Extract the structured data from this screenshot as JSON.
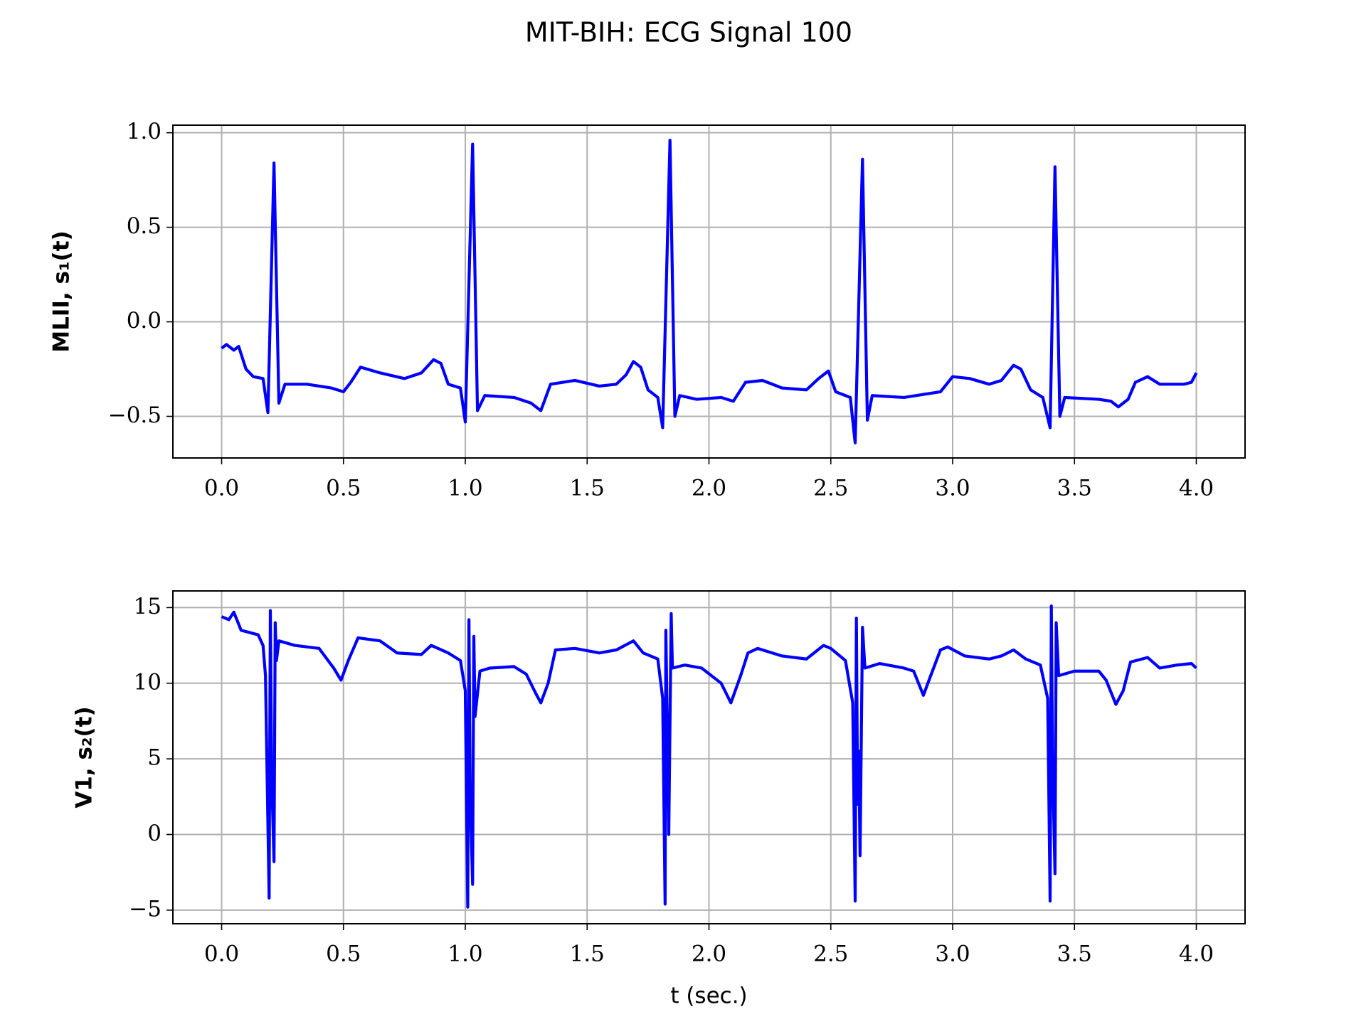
{
  "title": "MIT-BIH: ECG Signal 100",
  "chart_data": [
    {
      "type": "line",
      "ylabel": "MLII, s₁(t)",
      "color": "#0000ff",
      "grid": true,
      "xlim": [
        -0.2,
        4.2
      ],
      "ylim": [
        -0.72,
        1.04
      ],
      "xticks": [
        {
          "value": 0,
          "label": "0.0"
        },
        0.5,
        {
          "value": 1,
          "label": "1.0"
        },
        1.5,
        {
          "value": 2,
          "label": "2.0"
        },
        2.5,
        {
          "value": 3,
          "label": "3.0"
        },
        3.5,
        {
          "value": 4,
          "label": "4.0"
        }
      ],
      "yticks": [
        {
          "value": -0.5,
          "label": "−0.5"
        },
        {
          "value": 0,
          "label": "0.0"
        },
        0.5,
        {
          "value": 1,
          "label": "1.0"
        }
      ],
      "x": [
        0,
        0.02,
        0.05,
        0.07,
        0.1,
        0.13,
        0.17,
        0.19,
        0.215,
        0.235,
        0.26,
        0.35,
        0.45,
        0.5,
        0.53,
        0.57,
        0.65,
        0.75,
        0.82,
        0.87,
        0.9,
        0.93,
        0.98,
        1.0,
        1.03,
        1.05,
        1.08,
        1.2,
        1.27,
        1.31,
        1.35,
        1.45,
        1.55,
        1.62,
        1.66,
        1.69,
        1.72,
        1.75,
        1.79,
        1.81,
        1.84,
        1.86,
        1.88,
        1.95,
        2.05,
        2.1,
        2.15,
        2.22,
        2.3,
        2.4,
        2.45,
        2.49,
        2.52,
        2.58,
        2.6,
        2.63,
        2.65,
        2.67,
        2.8,
        2.9,
        2.95,
        3.0,
        3.07,
        3.15,
        3.2,
        3.25,
        3.28,
        3.32,
        3.37,
        3.4,
        3.42,
        3.44,
        3.46,
        3.6,
        3.65,
        3.68,
        3.72,
        3.75,
        3.8,
        3.85,
        3.95,
        3.98,
        4.0
      ],
      "values": [
        -0.14,
        -0.12,
        -0.15,
        -0.13,
        -0.25,
        -0.29,
        -0.3,
        -0.48,
        0.84,
        -0.43,
        -0.33,
        -0.33,
        -0.35,
        -0.37,
        -0.32,
        -0.24,
        -0.27,
        -0.3,
        -0.27,
        -0.2,
        -0.22,
        -0.33,
        -0.35,
        -0.53,
        0.94,
        -0.47,
        -0.39,
        -0.4,
        -0.43,
        -0.47,
        -0.33,
        -0.31,
        -0.34,
        -0.33,
        -0.28,
        -0.21,
        -0.24,
        -0.36,
        -0.4,
        -0.56,
        0.96,
        -0.5,
        -0.39,
        -0.41,
        -0.4,
        -0.42,
        -0.32,
        -0.31,
        -0.35,
        -0.36,
        -0.3,
        -0.26,
        -0.37,
        -0.4,
        -0.64,
        0.86,
        -0.52,
        -0.39,
        -0.4,
        -0.38,
        -0.37,
        -0.29,
        -0.3,
        -0.33,
        -0.31,
        -0.23,
        -0.25,
        -0.36,
        -0.4,
        -0.56,
        0.82,
        -0.5,
        -0.4,
        -0.41,
        -0.42,
        -0.45,
        -0.41,
        -0.32,
        -0.29,
        -0.33,
        -0.33,
        -0.32,
        -0.27
      ]
    },
    {
      "type": "line",
      "ylabel": "V1, s₂(t)",
      "xlabel": "t (sec.)",
      "color": "#0000ff",
      "grid": true,
      "xlim": [
        -0.2,
        4.2
      ],
      "ylim": [
        -5.9,
        16.1
      ],
      "xticks": [
        {
          "value": 0,
          "label": "0.0"
        },
        0.5,
        {
          "value": 1,
          "label": "1.0"
        },
        1.5,
        {
          "value": 2,
          "label": "2.0"
        },
        2.5,
        {
          "value": 3,
          "label": "3.0"
        },
        3.5,
        {
          "value": 4,
          "label": "4.0"
        }
      ],
      "yticks": [
        {
          "value": -5,
          "label": "−5"
        },
        0,
        5,
        10,
        15
      ],
      "x": [
        0,
        0.03,
        0.05,
        0.08,
        0.15,
        0.17,
        0.18,
        0.195,
        0.2,
        0.205,
        0.215,
        0.22,
        0.225,
        0.235,
        0.3,
        0.4,
        0.46,
        0.49,
        0.52,
        0.56,
        0.65,
        0.72,
        0.82,
        0.86,
        0.93,
        0.98,
        1.0,
        1.01,
        1.015,
        1.02,
        1.03,
        1.035,
        1.04,
        1.06,
        1.1,
        1.2,
        1.25,
        1.29,
        1.31,
        1.34,
        1.37,
        1.45,
        1.55,
        1.62,
        1.69,
        1.73,
        1.79,
        1.81,
        1.82,
        1.823,
        1.83,
        1.835,
        1.845,
        1.85,
        1.9,
        1.97,
        2.05,
        2.09,
        2.13,
        2.16,
        2.2,
        2.3,
        2.4,
        2.47,
        2.5,
        2.56,
        2.59,
        2.6,
        2.605,
        2.61,
        2.615,
        2.62,
        2.63,
        2.64,
        2.7,
        2.8,
        2.84,
        2.88,
        2.91,
        2.95,
        2.98,
        3.05,
        3.15,
        3.2,
        3.25,
        3.3,
        3.36,
        3.39,
        3.4,
        3.405,
        3.41,
        3.42,
        3.425,
        3.435,
        3.5,
        3.6,
        3.63,
        3.67,
        3.7,
        3.73,
        3.8,
        3.85,
        3.92,
        3.98,
        4.0
      ],
      "values": [
        14.4,
        14.2,
        14.7,
        13.5,
        13.2,
        12.5,
        10.5,
        -4.2,
        14.8,
        4.2,
        -1.8,
        14,
        11.5,
        12.8,
        12.5,
        12.3,
        11,
        10.2,
        11.5,
        13,
        12.8,
        12,
        11.9,
        12.5,
        12,
        11.5,
        9.5,
        -4.8,
        14.2,
        2.8,
        -3.3,
        13.1,
        7.8,
        10.8,
        11,
        11.1,
        10.6,
        9.3,
        8.7,
        10,
        12.2,
        12.3,
        12,
        12.2,
        12.8,
        12,
        11.6,
        9,
        -4.6,
        13.5,
        6,
        0,
        14.6,
        11,
        11.2,
        11,
        10,
        8.7,
        10.5,
        12,
        12.3,
        11.8,
        11.6,
        12.5,
        12.3,
        11.5,
        8.7,
        -4.4,
        14.3,
        2,
        5.5,
        -1.4,
        13.7,
        11,
        11.3,
        11,
        10.8,
        9.2,
        10.5,
        12.2,
        12.4,
        11.8,
        11.6,
        11.8,
        12.2,
        11.6,
        11.2,
        9,
        -4.4,
        15.1,
        5,
        -2.6,
        14,
        10.5,
        10.8,
        10.8,
        10.2,
        8.6,
        9.5,
        11.4,
        11.7,
        11,
        11.2,
        11.3,
        11
      ]
    }
  ]
}
